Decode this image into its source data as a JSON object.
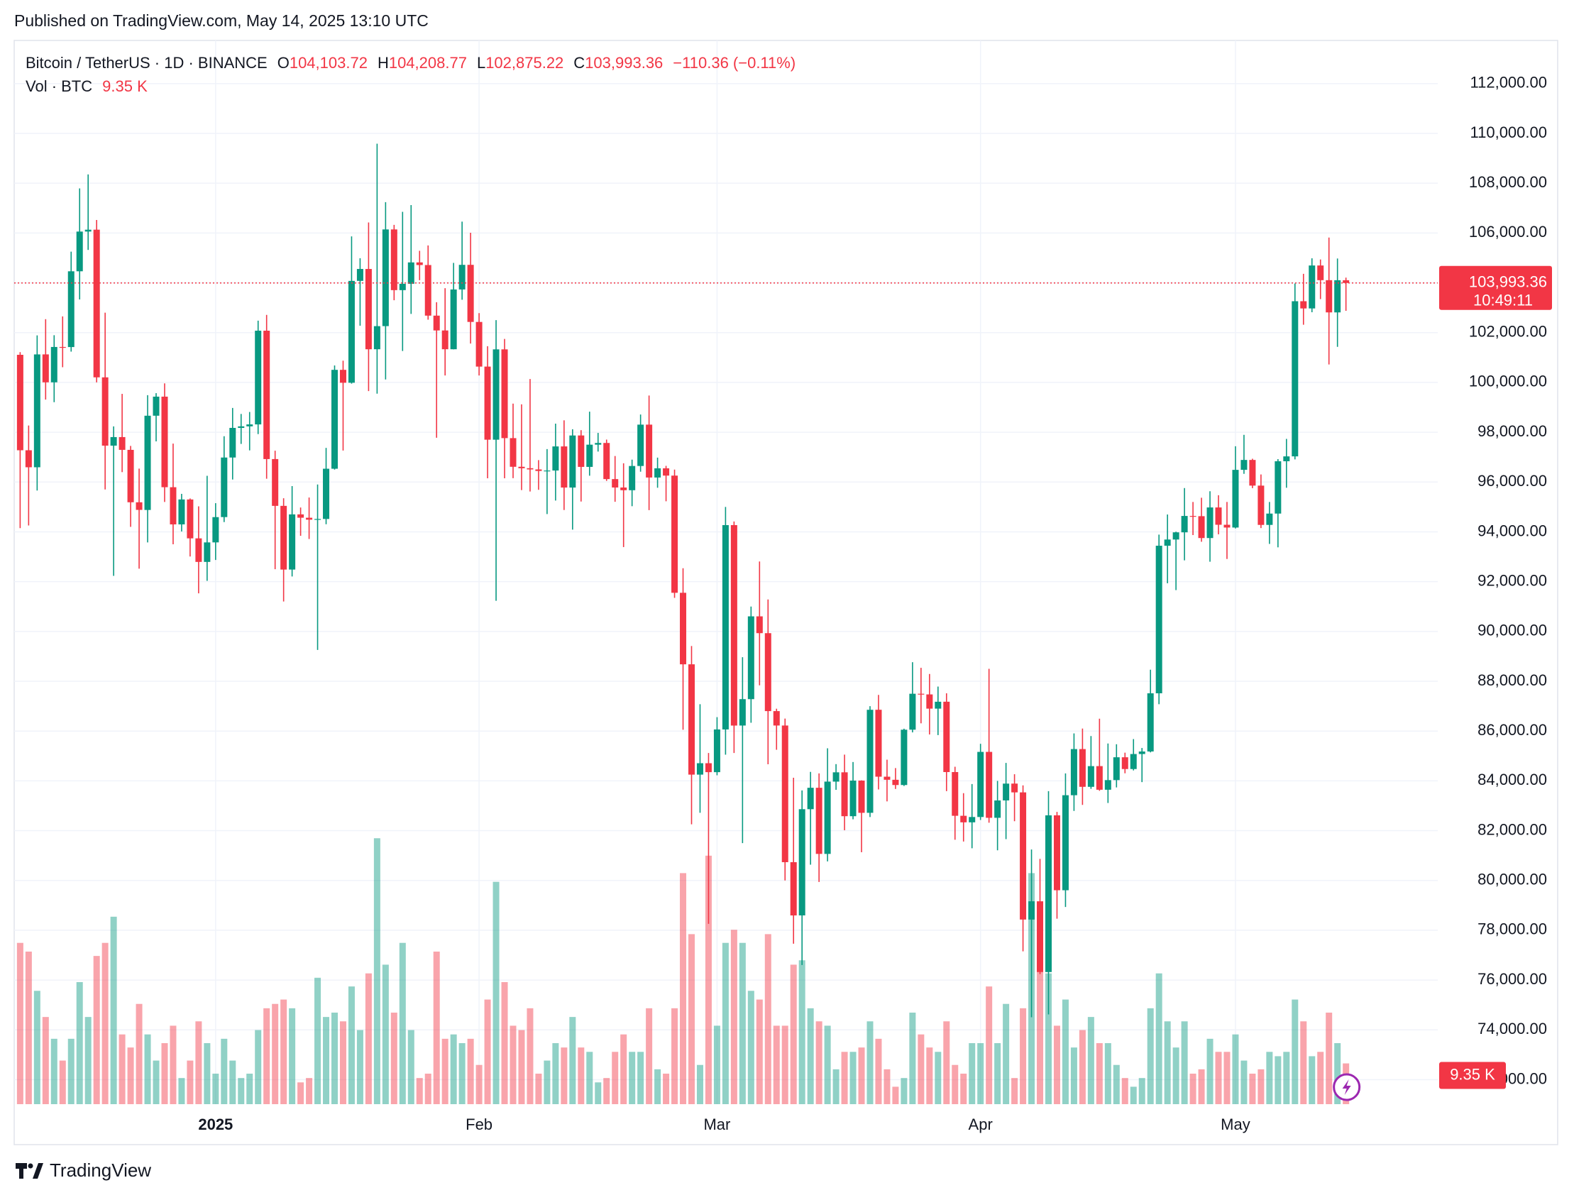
{
  "chart_data": {
    "type": "candlestick",
    "published": "Published on TradingView.com, May 14, 2025 13:10 UTC",
    "brand": "TradingView",
    "legend": {
      "symbol": "Bitcoin / TetherUS · 1D · BINANCE",
      "open_label": "O",
      "open": "104,103.72",
      "high_label": "H",
      "high": "104,208.77",
      "low_label": "L",
      "low": "102,875.22",
      "close_label": "C",
      "close": "103,993.36",
      "change": "−110.36 (−0.11%)",
      "volume_title": "Vol · BTC"
    },
    "up_color": "#089981",
    "down_color": "#f23645",
    "grid": true,
    "xlim": [
      -0.7,
      166.8
    ],
    "xticks": [
      {
        "value": 23,
        "label": "2025"
      },
      {
        "value": 54,
        "label": "Feb"
      },
      {
        "value": 82,
        "label": "Mar"
      },
      {
        "value": 113,
        "label": "Apr"
      },
      {
        "value": 143,
        "label": "May"
      }
    ],
    "ylim": [
      71016,
      113733
    ],
    "yticks": [
      {
        "value": 72000,
        "label": "72,000.00"
      },
      {
        "value": 74000,
        "label": "74,000.00"
      },
      {
        "value": 76000,
        "label": "76,000.00"
      },
      {
        "value": 78000,
        "label": "78,000.00"
      },
      {
        "value": 80000,
        "label": "80,000.00"
      },
      {
        "value": 82000,
        "label": "82,000.00"
      },
      {
        "value": 84000,
        "label": "84,000.00"
      },
      {
        "value": 86000,
        "label": "86,000.00"
      },
      {
        "value": 88000,
        "label": "88,000.00"
      },
      {
        "value": 90000,
        "label": "90,000.00"
      },
      {
        "value": 92000,
        "label": "92,000.00"
      },
      {
        "value": 94000,
        "label": "94,000.00"
      },
      {
        "value": 96000,
        "label": "96,000.00"
      },
      {
        "value": 98000,
        "label": "98,000.00"
      },
      {
        "value": 100000,
        "label": "100,000.00"
      },
      {
        "value": 102000,
        "label": "102,000.00"
      },
      {
        "value": 104000,
        "label": "104,000.00"
      },
      {
        "value": 106000,
        "label": "106,000.00"
      },
      {
        "value": 108000,
        "label": "108,000.00"
      },
      {
        "value": 110000,
        "label": "110,000.00"
      },
      {
        "value": 112000,
        "label": "112,000.00"
      }
    ],
    "volume_ylim": [
      0,
      244000
    ],
    "last_price": {
      "value": 103993.36,
      "label": "103,993.36"
    },
    "countdown": "10:49:11",
    "last_volume": {
      "value": 9350,
      "label": "9.35 K"
    },
    "open": [
      101109,
      97276,
      96593,
      101126,
      100004,
      101424,
      101420,
      104463,
      106058,
      106134,
      100204,
      97461,
      97805,
      97292,
      95187,
      94878,
      98663,
      99429,
      95792,
      94299,
      95300,
      93738,
      92792,
      93576,
      94592,
      96984,
      98174,
      98236,
      98314,
      102078,
      96922,
      95043,
      92485,
      94701,
      94566,
      94488,
      94517,
      96534,
      100505,
      99987,
      104078,
      104556,
      101332,
      102261,
      106144,
      103706,
      103960,
      104820,
      104714,
      102682,
      102087,
      101332,
      103733,
      104722,
      102429,
      100636,
      97700,
      101328,
      97763,
      96613,
      96555,
      96506,
      96444,
      96462,
      97430,
      95778,
      97870,
      96608,
      97500,
      97569,
      96118,
      95780,
      95671,
      96644,
      98305,
      96181,
      96551,
      96258,
      91552,
      88680,
      84250,
      84708,
      84349,
      86064,
      94270,
      86221,
      87281,
      90606,
      89931,
      86801,
      86222,
      80734,
      78596,
      82862,
      83722,
      81066,
      83969,
      84343,
      82580,
      84010,
      82716,
      86855,
      84167,
      84043,
      83832,
      86054,
      87498,
      87471,
      86900,
      87178,
      84353,
      82597,
      82334,
      82548,
      85163,
      82516,
      83214,
      83890,
      83537,
      78430,
      79163,
      76322,
      82615,
      79607,
      83423,
      85276,
      83760,
      84592,
      83643,
      84031,
      84947,
      84474,
      85077,
      85179,
      87516,
      93442,
      93691,
      93980,
      94638,
      94629,
      93750,
      94979,
      94284,
      94172,
      96490,
      96887,
      95856,
      94278,
      94733,
      96835,
      97030,
      103261,
      102971,
      104696,
      104106,
      102812,
      104103.72
    ],
    "high": [
      101215,
      98270,
      101888,
      102540,
      101895,
      102650,
      105250,
      107793,
      108353,
      106524,
      102800,
      98233,
      99540,
      97450,
      96539,
      99487,
      99569,
      99963,
      97544,
      95525,
      95340,
      95024,
      96250,
      95151,
      97839,
      98976,
      98734,
      98813,
      102482,
      102712,
      97258,
      95350,
      95837,
      94977,
      95378,
      95900,
      97371,
      100681,
      100873,
      105865,
      104988,
      106422,
      109588,
      107240,
      106327,
      106850,
      107120,
      105286,
      105500,
      103221,
      103784,
      104800,
      106457,
      106012,
      102783,
      101456,
      102500,
      101745,
      99149,
      99120,
      100137,
      96880,
      97323,
      98345,
      98478,
      98119,
      98083,
      98826,
      97972,
      97704,
      97046,
      96753,
      96899,
      98711,
      99475,
      96980,
      96650,
      96500,
      92540,
      89414,
      87078,
      85120,
      86558,
      95000,
      94416,
      88967,
      91000,
      92810,
      91283,
      86897,
      86500,
      84123,
      83617,
      84358,
      84300,
      85309,
      84672,
      85053,
      84756,
      84022,
      87000,
      87453,
      84850,
      84513,
      86094,
      88765,
      88539,
      88292,
      87786,
      87515,
      84567,
      83505,
      83870,
      85487,
      88500,
      83998,
      84720,
      84266,
      83817,
      81243,
      80867,
      83588,
      82753,
      84300,
      85905,
      86100,
      85799,
      86496,
      85500,
      85470,
      85132,
      85677,
      85320,
      88465,
      93888,
      94696,
      94005,
      95758,
      95199,
      95369,
      95630,
      95470,
      95200,
      97437,
      97895,
      96935,
      96304,
      95199,
      96920,
      97732,
      103971,
      104361,
      104984,
      104937,
      105819,
      104976,
      104208.77
    ],
    "low": [
      94150,
      94256,
      95658,
      99311,
      99206,
      100610,
      101237,
      103333,
      105321,
      100000,
      95700,
      92232,
      96398,
      94200,
      92520,
      93576,
      97632,
      95199,
      93500,
      94015,
      93009,
      91530,
      92033,
      92870,
      94392,
      96100,
      97530,
      97271,
      97926,
      96132,
      92500,
      91203,
      92207,
      93840,
      93712,
      89256,
      94305,
      96500,
      97264,
      99950,
      102278,
      99651,
      99550,
      100119,
      103300,
      101262,
      102750,
      104106,
      102520,
      97777,
      100279,
      101328,
      103320,
      101560,
      100279,
      96150,
      91231,
      96150,
      96155,
      95676,
      95620,
      95688,
      94713,
      95256,
      94876,
      94088,
      95217,
      96252,
      97223,
      96046,
      95205,
      93388,
      95029,
      96415,
      94871,
      95770,
      95227,
      91349,
      86050,
      82256,
      82716,
      78258,
      84224,
      85050,
      85117,
      81500,
      86334,
      87836,
      84667,
      85248,
      80000,
      77459,
      76606,
      80635,
      79939,
      80766,
      83639,
      82017,
      82456,
      81134,
      82547,
      83655,
      83175,
      83674,
      83794,
      85946,
      86310,
      85862,
      85837,
      83585,
      81634,
      81565,
      81293,
      82429,
      82320,
      81211,
      81659,
      82379,
      77153,
      74508,
      76239,
      74620,
      78464,
      78936,
      82792,
      83034,
      83678,
      83600,
      83111,
      83736,
      84303,
      84418,
      83949,
      85144,
      87076,
      91935,
      91660,
      92855,
      93870,
      93602,
      92800,
      93900,
      92910,
      94135,
      96329,
      95753,
      94151,
      93514,
      93377,
      95770,
      96910,
      102316,
      102818,
      103346,
      100719,
      101429,
      102875.22
    ],
    "close": [
      97276,
      96593,
      101125,
      100004,
      101424,
      101420,
      104463,
      106058,
      106133,
      100204,
      97461,
      97805,
      97292,
      95187,
      94881,
      98663,
      99429,
      95792,
      94299,
      95300,
      93738,
      92792,
      93576,
      94591,
      96984,
      98174,
      98236,
      98314,
      102078,
      96922,
      95043,
      92484,
      94701,
      94567,
      94488,
      94516,
      96534,
      100505,
      99987,
      104077,
      104556,
      101331,
      102260,
      106144,
      103706,
      103960,
      104820,
      104714,
      102682,
      102087,
      101332,
      103733,
      104722,
      102429,
      100635,
      97700,
      101328,
      97763,
      96612,
      96554,
      96506,
      96444,
      96462,
      97430,
      95778,
      97869,
      96608,
      97500,
      97569,
      96118,
      95780,
      95671,
      96644,
      98305,
      96181,
      96551,
      96258,
      91552,
      88680,
      84250,
      84708,
      84349,
      86064,
      94270,
      86220,
      87281,
      90606,
      89931,
      86801,
      86222,
      80734,
      78595,
      82862,
      83722,
      81066,
      83969,
      84343,
      82580,
      84010,
      82716,
      86854,
      84167,
      84043,
      83832,
      86054,
      87498,
      87471,
      86900,
      87177,
      84353,
      82597,
      82334,
      82548,
      85163,
      82516,
      83213,
      83889,
      83537,
      78430,
      79163,
      76323,
      82615,
      79607,
      83423,
      85276,
      83760,
      84591,
      83643,
      84030,
      84947,
      84474,
      85077,
      85179,
      87516,
      93442,
      93691,
      93980,
      94638,
      94629,
      93750,
      94979,
      94284,
      94172,
      96489,
      96887,
      95856,
      94278,
      94733,
      96834,
      97030,
      103261,
      102971,
      104696,
      104106,
      102812,
      104103.72,
      103993.36
    ],
    "volume": [
      37000,
      35000,
      26000,
      20000,
      15000,
      10000,
      15000,
      28000,
      20000,
      34000,
      37000,
      43000,
      16000,
      13000,
      23000,
      16000,
      10000,
      14000,
      18000,
      6000,
      10000,
      19000,
      14000,
      7000,
      15000,
      10000,
      6000,
      7000,
      17000,
      22000,
      23000,
      24000,
      22000,
      5000,
      6000,
      29000,
      20000,
      21000,
      19000,
      27000,
      17000,
      30000,
      61000,
      32000,
      21000,
      37000,
      17000,
      6000,
      7000,
      35000,
      15000,
      16000,
      14000,
      15000,
      9000,
      24000,
      51000,
      28000,
      18000,
      17000,
      22000,
      7000,
      10000,
      14000,
      13000,
      20000,
      13000,
      12000,
      5000,
      6000,
      12000,
      16000,
      12000,
      12000,
      22000,
      8000,
      7000,
      22000,
      53000,
      39000,
      9000,
      57000,
      18000,
      37000,
      40000,
      37000,
      26000,
      24000,
      39000,
      18000,
      18000,
      32000,
      33000,
      22000,
      19000,
      18000,
      8000,
      12000,
      12000,
      13000,
      19000,
      15000,
      8000,
      4000,
      6000,
      21000,
      16000,
      13000,
      12000,
      19000,
      9000,
      7000,
      14000,
      14000,
      27000,
      14000,
      23000,
      6000,
      22000,
      53000,
      37000,
      30000,
      18000,
      24000,
      13000,
      17000,
      20000,
      14000,
      14000,
      9000,
      6000,
      4000,
      6000,
      22000,
      30000,
      19000,
      13000,
      19000,
      7000,
      8000,
      15000,
      12000,
      12000,
      16000,
      10000,
      7000,
      8000,
      12000,
      11000,
      12000,
      24000,
      19000,
      11000,
      12000,
      21000,
      14000,
      9350
    ]
  }
}
